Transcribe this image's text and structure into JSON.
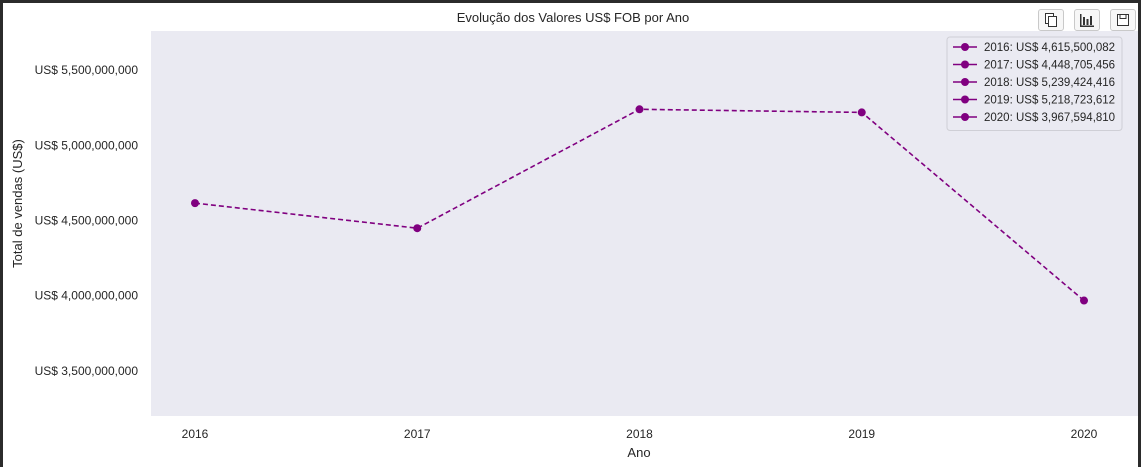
{
  "chart_data": {
    "type": "line",
    "title": "Evolução dos Valores US$ FOB por Ano",
    "xlabel": "Ano",
    "ylabel": "Total de vendas (US$)",
    "categories": [
      "2016",
      "2017",
      "2018",
      "2019",
      "2020"
    ],
    "values": [
      4615500082,
      4448705456,
      5239424416,
      5218723612,
      3967594810
    ],
    "ylim": [
      3200000000,
      5760000000
    ],
    "yticks": [
      3500000000,
      4000000000,
      4500000000,
      5000000000,
      5500000000
    ],
    "ytick_labels": [
      "US$ 3,500,000,000",
      "US$ 4,000,000,000",
      "US$ 4,500,000,000",
      "US$ 5,000,000,000",
      "US$ 5,500,000,000"
    ],
    "legend_position": "top-right",
    "legend": [
      "2016: US$ 4,615,500,082",
      "2017: US$ 4,448,705,456",
      "2018: US$ 5,239,424,416",
      "2019: US$ 5,218,723,612",
      "2020: US$ 3,967,594,810"
    ],
    "grid": false,
    "line_style": "dashed",
    "marker": "circle",
    "color": "#800080",
    "plot_background": "#eaeaf2"
  },
  "toolbar": {
    "buttons": [
      {
        "name": "copy",
        "icon": "copy-icon"
      },
      {
        "name": "chart",
        "icon": "bar-chart-icon"
      },
      {
        "name": "save",
        "icon": "save-icon"
      }
    ]
  }
}
